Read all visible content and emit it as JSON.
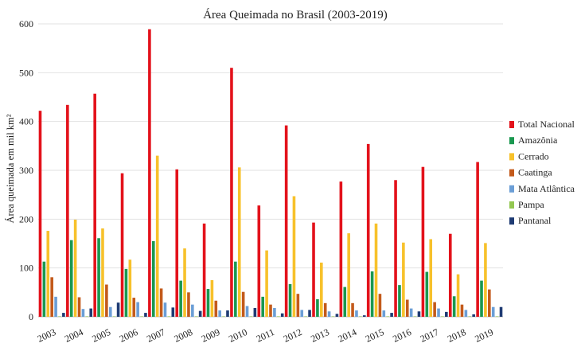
{
  "chart_data": {
    "type": "bar",
    "title": "Área Queimada no Brasil (2003-2019)",
    "ylabel": "Área queimada em mil km²",
    "xlabel": "",
    "ylim": [
      0,
      600
    ],
    "yticks": [
      0,
      100,
      200,
      300,
      400,
      500,
      600
    ],
    "grid": true,
    "legend_position": "right",
    "categories": [
      "2003",
      "2004",
      "2005",
      "2006",
      "2007",
      "2008",
      "2009",
      "2010",
      "2011",
      "2012",
      "2013",
      "2014",
      "2015",
      "2016",
      "2017",
      "2018",
      "2019"
    ],
    "series": [
      {
        "name": "Total Nacional",
        "color": "#e3121b",
        "values": [
          422,
          434,
          457,
          294,
          589,
          302,
          191,
          510,
          228,
          392,
          193,
          277,
          354,
          280,
          307,
          170,
          317
        ]
      },
      {
        "name": "Amazônia",
        "color": "#1a9850",
        "values": [
          113,
          157,
          161,
          98,
          155,
          74,
          57,
          113,
          41,
          67,
          36,
          61,
          93,
          65,
          92,
          42,
          74
        ]
      },
      {
        "name": "Cerrado",
        "color": "#f7c12b",
        "values": [
          176,
          199,
          181,
          117,
          330,
          140,
          75,
          306,
          136,
          247,
          111,
          171,
          191,
          152,
          159,
          87,
          151
        ]
      },
      {
        "name": "Caatinga",
        "color": "#c35a1b",
        "values": [
          81,
          40,
          66,
          39,
          58,
          50,
          33,
          51,
          25,
          47,
          28,
          28,
          47,
          35,
          30,
          25,
          56
        ]
      },
      {
        "name": "Mata Atlântica",
        "color": "#6b9ed6",
        "values": [
          41,
          16,
          20,
          30,
          29,
          25,
          13,
          22,
          18,
          14,
          11,
          13,
          13,
          17,
          17,
          14,
          20
        ]
      },
      {
        "name": "Pampa",
        "color": "#93c751",
        "values": [
          1,
          1,
          1,
          1,
          1,
          1,
          1,
          1,
          1,
          1,
          1,
          1,
          1,
          1,
          1,
          1,
          1
        ]
      },
      {
        "name": "Pantanal",
        "color": "#1f3b73",
        "values": [
          8,
          17,
          29,
          8,
          19,
          12,
          13,
          18,
          7,
          14,
          6,
          3,
          8,
          11,
          10,
          5,
          20
        ]
      }
    ]
  }
}
